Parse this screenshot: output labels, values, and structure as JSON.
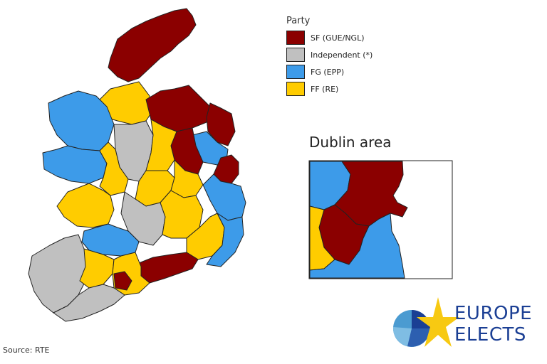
{
  "legend": {
    "title": "Party",
    "items": [
      {
        "label": "SF (GUE/NGL)",
        "color": "#8b0000"
      },
      {
        "label": "Independent (*)",
        "color": "#c0c0c0"
      },
      {
        "label": "FG (EPP)",
        "color": "#3d9be9"
      },
      {
        "label": "FF (RE)",
        "color": "#ffcc00"
      }
    ]
  },
  "inset": {
    "title": "Dublin area"
  },
  "source": "Source: RTE",
  "logo": {
    "line1": "EUROPE",
    "line2": "ELECTS",
    "text_color": "#1b3f94",
    "star_color": "#f7c912"
  }
}
